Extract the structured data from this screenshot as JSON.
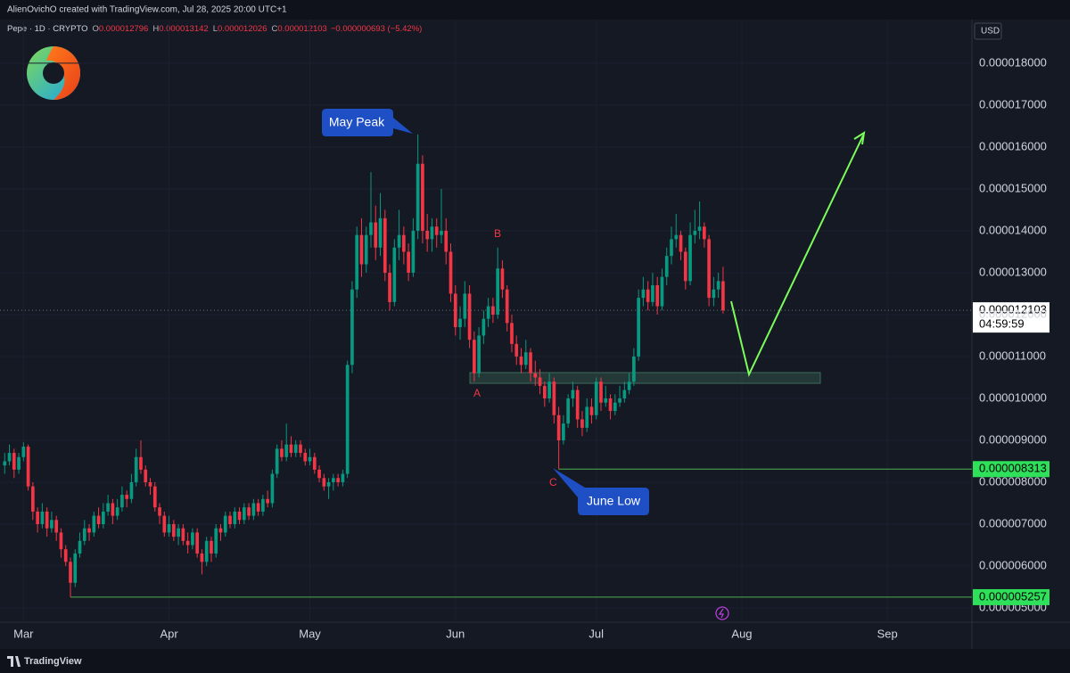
{
  "header": {
    "author": "AlienOvichO created with TradingView.com, Jul 28, 2025 20:00 UTC+1",
    "brand": "TradingView"
  },
  "chart_data": {
    "type": "candlestick",
    "symbol": "Pepe · 1D · CRYPTO",
    "currency": "USD",
    "legend": {
      "o_key": "O",
      "o": "0.000012796",
      "h_key": "H",
      "h": "0.000013142",
      "l_key": "L",
      "l": "0.000012026",
      "c_key": "C",
      "c": "0.000012103",
      "change": "−0.000000693 (−5.42%)"
    },
    "up_color": "#089981",
    "down_color": "#f23645",
    "xlim": [
      -1,
      206
    ],
    "xticks": [
      {
        "value": 4,
        "label": "Mar"
      },
      {
        "value": 35,
        "label": "Apr"
      },
      {
        "value": 65,
        "label": "May"
      },
      {
        "value": 96,
        "label": "Jun"
      },
      {
        "value": 126,
        "label": "Jul"
      },
      {
        "value": 157,
        "label": "Aug"
      },
      {
        "value": 188,
        "label": "Sep"
      }
    ],
    "ylim": [
      4.66e-06,
      1.904e-05
    ],
    "yticks": [
      {
        "value": 5e-06,
        "label": "0.000005000"
      },
      {
        "value": 6e-06,
        "label": "0.000006000"
      },
      {
        "value": 7e-06,
        "label": "0.000007000"
      },
      {
        "value": 8e-06,
        "label": "0.000008000"
      },
      {
        "value": 9e-06,
        "label": "0.000009000"
      },
      {
        "value": 1e-05,
        "label": "0.000010000"
      },
      {
        "value": 1.1e-05,
        "label": "0.000011000"
      },
      {
        "value": 1.2e-05,
        "label": "0.000012000"
      },
      {
        "value": 1.3e-05,
        "label": "0.000013000"
      },
      {
        "value": 1.4e-05,
        "label": "0.000014000"
      },
      {
        "value": 1.5e-05,
        "label": "0.000015000"
      },
      {
        "value": 1.6e-05,
        "label": "0.000016000"
      },
      {
        "value": 1.7e-05,
        "label": "0.000017000"
      },
      {
        "value": 1.8e-05,
        "label": "0.000018000"
      }
    ],
    "last_price": {
      "value": 1.2103e-05,
      "label": "0.000012103",
      "countdown": "04:59:59"
    },
    "levels": [
      {
        "value": 8.313e-06,
        "label": "0.000008313",
        "color": "#4caf50",
        "tag_color": "#2ee05a"
      },
      {
        "value": 5.257e-06,
        "label": "0.000005257",
        "color": "#4caf50",
        "tag_color": "#2ee05a"
      }
    ],
    "annotations": {
      "peak": "May Peak",
      "low": "June Low",
      "a": "A",
      "b": "B",
      "c": "C"
    },
    "ohlc": [
      [
        8.4e-06,
        8.7e-06,
        8.2e-06,
        8.5e-06
      ],
      [
        8.5e-06,
        8.9e-06,
        8.4e-06,
        8.7e-06
      ],
      [
        8.7e-06,
        8.8e-06,
        8.1e-06,
        8.3e-06
      ],
      [
        8.3e-06,
        8.7e-06,
        8.2e-06,
        8.6e-06
      ],
      [
        8.6e-06,
        8.95e-06,
        8.5e-06,
        8.85e-06
      ],
      [
        8.85e-06,
        8.9e-06,
        7.8e-06,
        7.9e-06
      ],
      [
        7.9e-06,
        8e-06,
        7.1e-06,
        7.3e-06
      ],
      [
        7.3e-06,
        7.4e-06,
        6.8e-06,
        7e-06
      ],
      [
        7e-06,
        7.5e-06,
        6.9e-06,
        7.3e-06
      ],
      [
        7.3e-06,
        7.4e-06,
        6.7e-06,
        6.9e-06
      ],
      [
        6.9e-06,
        7.3e-06,
        6.8e-06,
        7.1e-06
      ],
      [
        7.1e-06,
        7.2e-06,
        6.6e-06,
        6.8e-06
      ],
      [
        6.8e-06,
        6.9e-06,
        6.2e-06,
        6.4e-06
      ],
      [
        6.4e-06,
        6.5e-06,
        6e-06,
        6.1e-06
      ],
      [
        6.1e-06,
        6.2e-06,
        5.257e-06,
        5.6e-06
      ],
      [
        5.6e-06,
        6.4e-06,
        5.5e-06,
        6.3e-06
      ],
      [
        6.3e-06,
        6.8e-06,
        6.2e-06,
        6.6e-06
      ],
      [
        6.6e-06,
        7.1e-06,
        6.5e-06,
        6.9e-06
      ],
      [
        6.9e-06,
        7e-06,
        6.6e-06,
        6.8e-06
      ],
      [
        6.8e-06,
        7.3e-06,
        6.7e-06,
        7.2e-06
      ],
      [
        7.2e-06,
        7.4e-06,
        6.9e-06,
        7e-06
      ],
      [
        7e-06,
        7.5e-06,
        6.9e-06,
        7.3e-06
      ],
      [
        7.3e-06,
        7.7e-06,
        7.2e-06,
        7.5e-06
      ],
      [
        7.5e-06,
        7.6e-06,
        7e-06,
        7.2e-06
      ],
      [
        7.2e-06,
        7.6e-06,
        7.1e-06,
        7.4e-06
      ],
      [
        7.4e-06,
        7.9e-06,
        7.3e-06,
        7.7e-06
      ],
      [
        7.7e-06,
        7.8e-06,
        7.4e-06,
        7.6e-06
      ],
      [
        7.6e-06,
        8.2e-06,
        7.5e-06,
        8e-06
      ],
      [
        8e-06,
        8.8e-06,
        7.9e-06,
        8.6e-06
      ],
      [
        8.6e-06,
        9e-06,
        8.2e-06,
        8.3e-06
      ],
      [
        8.3e-06,
        8.4e-06,
        7.9e-06,
        8e-06
      ],
      [
        8e-06,
        8.1e-06,
        7.7e-06,
        7.9e-06
      ],
      [
        7.9e-06,
        8e-06,
        7.3e-06,
        7.4e-06
      ],
      [
        7.4e-06,
        7.5e-06,
        7e-06,
        7.2e-06
      ],
      [
        7.2e-06,
        7.3e-06,
        6.7e-06,
        6.8e-06
      ],
      [
        6.8e-06,
        7.2e-06,
        6.7e-06,
        7e-06
      ],
      [
        7e-06,
        7.1e-06,
        6.6e-06,
        6.7e-06
      ],
      [
        6.7e-06,
        7e-06,
        6.5e-06,
        6.9e-06
      ],
      [
        6.9e-06,
        7e-06,
        6.5e-06,
        6.6e-06
      ],
      [
        6.6e-06,
        6.8e-06,
        6.3e-06,
        6.5e-06
      ],
      [
        6.5e-06,
        6.9e-06,
        6.4e-06,
        6.8e-06
      ],
      [
        6.8e-06,
        6.9e-06,
        6.2e-06,
        6.3e-06
      ],
      [
        6.3e-06,
        6.4e-06,
        5.8e-06,
        6.1e-06
      ],
      [
        6.1e-06,
        6.7e-06,
        6e-06,
        6.6e-06
      ],
      [
        6.6e-06,
        6.7e-06,
        6.1e-06,
        6.3e-06
      ],
      [
        6.3e-06,
        7e-06,
        6.2e-06,
        6.9e-06
      ],
      [
        6.9e-06,
        7e-06,
        6.6e-06,
        6.8e-06
      ],
      [
        6.8e-06,
        7.3e-06,
        6.7e-06,
        7.2e-06
      ],
      [
        7.2e-06,
        7.3e-06,
        6.9e-06,
        7e-06
      ],
      [
        7e-06,
        7.4e-06,
        6.9e-06,
        7.3e-06
      ],
      [
        7.3e-06,
        7.4e-06,
        7e-06,
        7.1e-06
      ],
      [
        7.1e-06,
        7.5e-06,
        7e-06,
        7.4e-06
      ],
      [
        7.4e-06,
        7.5e-06,
        7.1e-06,
        7.2e-06
      ],
      [
        7.2e-06,
        7.6e-06,
        7.1e-06,
        7.5e-06
      ],
      [
        7.5e-06,
        7.6e-06,
        7.2e-06,
        7.3e-06
      ],
      [
        7.3e-06,
        7.7e-06,
        7.2e-06,
        7.6e-06
      ],
      [
        7.6e-06,
        7.8e-06,
        7.4e-06,
        7.5e-06
      ],
      [
        7.5e-06,
        8.3e-06,
        7.4e-06,
        8.2e-06
      ],
      [
        8.2e-06,
        8.9e-06,
        8.1e-06,
        8.8e-06
      ],
      [
        8.8e-06,
        9e-06,
        8.5e-06,
        8.6e-06
      ],
      [
        8.6e-06,
        9.4e-06,
        8.5e-06,
        8.9e-06
      ],
      [
        8.9e-06,
        9.1e-06,
        8.6e-06,
        8.7e-06
      ],
      [
        8.7e-06,
        9e-06,
        8.6e-06,
        8.9e-06
      ],
      [
        8.9e-06,
        9e-06,
        8.6e-06,
        8.7e-06
      ],
      [
        8.7e-06,
        8.8e-06,
        8.4e-06,
        8.5e-06
      ],
      [
        8.5e-06,
        8.8e-06,
        8.4e-06,
        8.6e-06
      ],
      [
        8.6e-06,
        8.7e-06,
        8.2e-06,
        8.3e-06
      ],
      [
        8.3e-06,
        8.4e-06,
        8e-06,
        8.1e-06
      ],
      [
        8.1e-06,
        8.2e-06,
        7.8e-06,
        7.9e-06
      ],
      [
        7.9e-06,
        8.1e-06,
        7.6e-06,
        8e-06
      ],
      [
        8e-06,
        8.2e-06,
        7.8e-06,
        8.1e-06
      ],
      [
        8.1e-06,
        8.2e-06,
        7.9e-06,
        8e-06
      ],
      [
        8e-06,
        8.3e-06,
        7.9e-06,
        8.2e-06
      ],
      [
        8.2e-06,
        1.09e-05,
        8.1e-06,
        1.08e-05
      ],
      [
        1.08e-05,
        1.28e-05,
        1.06e-05,
        1.26e-05
      ],
      [
        1.26e-05,
        1.41e-05,
        1.24e-05,
        1.39e-05
      ],
      [
        1.39e-05,
        1.43e-05,
        1.29e-05,
        1.32e-05
      ],
      [
        1.32e-05,
        1.41e-05,
        1.3e-05,
        1.39e-05
      ],
      [
        1.39e-05,
        1.54e-05,
        1.36e-05,
        1.42e-05
      ],
      [
        1.42e-05,
        1.46e-05,
        1.33e-05,
        1.36e-05
      ],
      [
        1.36e-05,
        1.49e-05,
        1.34e-05,
        1.43e-05
      ],
      [
        1.43e-05,
        1.45e-05,
        1.28e-05,
        1.3e-05
      ],
      [
        1.3e-05,
        1.32e-05,
        1.21e-05,
        1.23e-05
      ],
      [
        1.23e-05,
        1.38e-05,
        1.22e-05,
        1.36e-05
      ],
      [
        1.36e-05,
        1.45e-05,
        1.33e-05,
        1.39e-05
      ],
      [
        1.39e-05,
        1.41e-05,
        1.32e-05,
        1.35e-05
      ],
      [
        1.35e-05,
        1.37e-05,
        1.28e-05,
        1.3e-05
      ],
      [
        1.3e-05,
        1.43e-05,
        1.29e-05,
        1.4e-05
      ],
      [
        1.4e-05,
        1.63e-05,
        1.38e-05,
        1.56e-05
      ],
      [
        1.56e-05,
        1.58e-05,
        1.37e-05,
        1.4e-05
      ],
      [
        1.4e-05,
        1.44e-05,
        1.35e-05,
        1.38e-05
      ],
      [
        1.38e-05,
        1.43e-05,
        1.35e-05,
        1.41e-05
      ],
      [
        1.41e-05,
        1.43e-05,
        1.36e-05,
        1.39e-05
      ],
      [
        1.39e-05,
        1.5e-05,
        1.37e-05,
        1.4e-05
      ],
      [
        1.4e-05,
        1.43e-05,
        1.32e-05,
        1.35e-05
      ],
      [
        1.35e-05,
        1.37e-05,
        1.23e-05,
        1.25e-05
      ],
      [
        1.25e-05,
        1.27e-05,
        1.15e-05,
        1.17e-05
      ],
      [
        1.17e-05,
        1.22e-05,
        1.14e-05,
        1.19e-05
      ],
      [
        1.19e-05,
        1.28e-05,
        1.17e-05,
        1.25e-05
      ],
      [
        1.25e-05,
        1.27e-05,
        1.12e-05,
        1.14e-05
      ],
      [
        1.14e-05,
        1.16e-05,
        1.04e-05,
        1.06e-05
      ],
      [
        1.06e-05,
        1.17e-05,
        1.05e-05,
        1.15e-05
      ],
      [
        1.15e-05,
        1.21e-05,
        1.13e-05,
        1.19e-05
      ],
      [
        1.19e-05,
        1.24e-05,
        1.17e-05,
        1.22e-05
      ],
      [
        1.22e-05,
        1.24e-05,
        1.18e-05,
        1.2e-05
      ],
      [
        1.2e-05,
        1.36e-05,
        1.19e-05,
        1.31e-05
      ],
      [
        1.31e-05,
        1.33e-05,
        1.24e-05,
        1.26e-05
      ],
      [
        1.26e-05,
        1.27e-05,
        1.16e-05,
        1.18e-05
      ],
      [
        1.18e-05,
        1.2e-05,
        1.11e-05,
        1.13e-05
      ],
      [
        1.13e-05,
        1.15e-05,
        1.08e-05,
        1.1e-05
      ],
      [
        1.1e-05,
        1.12e-05,
        1.06e-05,
        1.08e-05
      ],
      [
        1.08e-05,
        1.14e-05,
        1.07e-05,
        1.11e-05
      ],
      [
        1.11e-05,
        1.12e-05,
        1.04e-05,
        1.06e-05
      ],
      [
        1.06e-05,
        1.09e-05,
        1.03e-05,
        1.05e-05
      ],
      [
        1.05e-05,
        1.07e-05,
        1.01e-05,
        1.03e-05
      ],
      [
        1.03e-05,
        1.04e-05,
        9.8e-06,
        1e-05
      ],
      [
        1e-05,
        1.06e-05,
        9.9e-06,
        1.04e-05
      ],
      [
        1.04e-05,
        1.05e-05,
        9.4e-06,
        9.6e-06
      ],
      [
        9.6e-06,
        9.8e-06,
        8.313e-06,
        9e-06
      ],
      [
        9e-06,
        9.6e-06,
        8.9e-06,
        9.4e-06
      ],
      [
        9.4e-06,
        1.01e-05,
        9.3e-06,
        1e-05
      ],
      [
        1e-05,
        1.04e-05,
        9.8e-06,
        1.02e-05
      ],
      [
        1.02e-05,
        1.03e-05,
        9.3e-06,
        9.5e-06
      ],
      [
        9.5e-06,
        9.7e-06,
        9.1e-06,
        9.3e-06
      ],
      [
        9.3e-06,
        1e-05,
        9.2e-06,
        9.8e-06
      ],
      [
        9.8e-06,
        1e-05,
        9.4e-06,
        9.6e-06
      ],
      [
        9.6e-06,
        1.05e-05,
        9.5e-06,
        1.04e-05
      ],
      [
        1.04e-05,
        1.05e-05,
        9.7e-06,
        9.9e-06
      ],
      [
        9.9e-06,
        1.03e-05,
        9.8e-06,
        1e-05
      ],
      [
        1e-05,
        1.01e-05,
        9.5e-06,
        9.7e-06
      ],
      [
        9.7e-06,
        1.01e-05,
        9.6e-06,
        9.9e-06
      ],
      [
        9.9e-06,
        1.03e-05,
        9.8e-06,
        1e-05
      ],
      [
        1e-05,
        1.04e-05,
        9.9e-06,
        1.02e-05
      ],
      [
        1.02e-05,
        1.06e-05,
        1.01e-05,
        1.04e-05
      ],
      [
        1.04e-05,
        1.12e-05,
        1.03e-05,
        1.1e-05
      ],
      [
        1.1e-05,
        1.26e-05,
        1.09e-05,
        1.24e-05
      ],
      [
        1.24e-05,
        1.29e-05,
        1.22e-05,
        1.26e-05
      ],
      [
        1.26e-05,
        1.28e-05,
        1.21e-05,
        1.23e-05
      ],
      [
        1.23e-05,
        1.3e-05,
        1.22e-05,
        1.27e-05
      ],
      [
        1.27e-05,
        1.29e-05,
        1.2e-05,
        1.22e-05
      ],
      [
        1.22e-05,
        1.31e-05,
        1.21e-05,
        1.29e-05
      ],
      [
        1.29e-05,
        1.36e-05,
        1.27e-05,
        1.34e-05
      ],
      [
        1.34e-05,
        1.41e-05,
        1.32e-05,
        1.38e-05
      ],
      [
        1.38e-05,
        1.44e-05,
        1.36e-05,
        1.39e-05
      ],
      [
        1.39e-05,
        1.4e-05,
        1.33e-05,
        1.35e-05
      ],
      [
        1.35e-05,
        1.36e-05,
        1.26e-05,
        1.28e-05
      ],
      [
        1.28e-05,
        1.42e-05,
        1.27e-05,
        1.39e-05
      ],
      [
        1.39e-05,
        1.45e-05,
        1.37e-05,
        1.4e-05
      ],
      [
        1.4e-05,
        1.47e-05,
        1.38e-05,
        1.41e-05
      ],
      [
        1.41e-05,
        1.42e-05,
        1.36e-05,
        1.38e-05
      ],
      [
        1.38e-05,
        1.39e-05,
        1.22e-05,
        1.24e-05
      ],
      [
        1.24e-05,
        1.29e-05,
        1.22e-05,
        1.26e-05
      ],
      [
        1.26e-05,
        1.3e-05,
        1.24e-05,
        1.28e-05
      ],
      [
        1.2796e-05,
        1.3142e-05,
        1.2026e-05,
        1.2103e-05
      ]
    ]
  }
}
